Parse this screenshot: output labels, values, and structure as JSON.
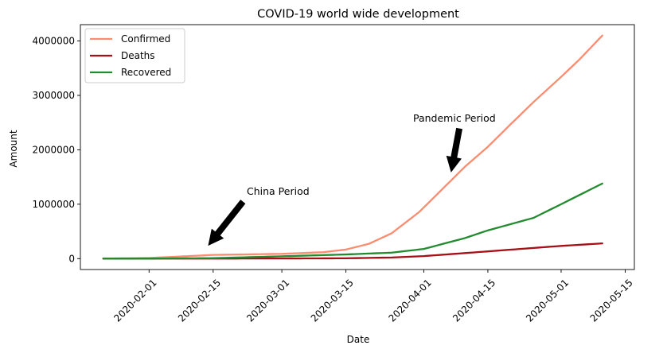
{
  "chart_data": {
    "type": "line",
    "title": "COVID-19 world wide development",
    "xlabel": "Date",
    "ylabel": "Amount",
    "x_ticks": [
      "2020-02-01",
      "2020-02-15",
      "2020-03-01",
      "2020-03-15",
      "2020-04-01",
      "2020-04-15",
      "2020-05-01",
      "2020-05-15"
    ],
    "y_ticks": [
      0,
      1000000,
      2000000,
      3000000,
      4000000
    ],
    "y_tick_labels": [
      "0",
      "1000000",
      "2000000",
      "3000000",
      "4000000"
    ],
    "xlim": [
      "2020-01-17",
      "2020-05-17"
    ],
    "ylim": [
      -200000,
      4300000
    ],
    "grid": false,
    "legend_position": "upper-left",
    "series": [
      {
        "name": "Confirmed",
        "color": "#fa8c6f",
        "points": [
          [
            "2020-01-22",
            555
          ],
          [
            "2020-02-01",
            12000
          ],
          [
            "2020-02-13",
            60000
          ],
          [
            "2020-02-15",
            69000
          ],
          [
            "2020-03-01",
            88000
          ],
          [
            "2020-03-10",
            118000
          ],
          [
            "2020-03-15",
            167000
          ],
          [
            "2020-03-20",
            272000
          ],
          [
            "2020-03-25",
            467000
          ],
          [
            "2020-03-31",
            857000
          ],
          [
            "2020-04-05",
            1273000
          ],
          [
            "2020-04-10",
            1690000
          ],
          [
            "2020-04-15",
            2056000
          ],
          [
            "2020-04-20",
            2472000
          ],
          [
            "2020-04-25",
            2880000
          ],
          [
            "2020-05-01",
            3340000
          ],
          [
            "2020-05-05",
            3660000
          ],
          [
            "2020-05-10",
            4100000
          ]
        ]
      },
      {
        "name": "Deaths",
        "color": "#a50f15",
        "points": [
          [
            "2020-01-22",
            17
          ],
          [
            "2020-02-01",
            259
          ],
          [
            "2020-02-15",
            1666
          ],
          [
            "2020-03-01",
            2996
          ],
          [
            "2020-03-15",
            6500
          ],
          [
            "2020-03-25",
            21000
          ],
          [
            "2020-04-01",
            47000
          ],
          [
            "2020-04-10",
            102000
          ],
          [
            "2020-04-20",
            165000
          ],
          [
            "2020-05-01",
            234000
          ],
          [
            "2020-05-10",
            280000
          ]
        ]
      },
      {
        "name": "Recovered",
        "color": "#238b2f",
        "points": [
          [
            "2020-01-22",
            28
          ],
          [
            "2020-02-01",
            284
          ],
          [
            "2020-02-15",
            9000
          ],
          [
            "2020-03-01",
            43000
          ],
          [
            "2020-03-15",
            77000
          ],
          [
            "2020-03-25",
            110000
          ],
          [
            "2020-04-01",
            178000
          ],
          [
            "2020-04-10",
            378000
          ],
          [
            "2020-04-15",
            519000
          ],
          [
            "2020-04-25",
            750000
          ],
          [
            "2020-05-01",
            1000000
          ],
          [
            "2020-05-10",
            1380000
          ]
        ]
      }
    ],
    "annotations": [
      {
        "text": "China Period",
        "target": [
          "2020-02-14",
          250000
        ]
      },
      {
        "text": "Pandemic Period",
        "target": [
          "2020-04-07",
          1600000
        ]
      }
    ]
  }
}
